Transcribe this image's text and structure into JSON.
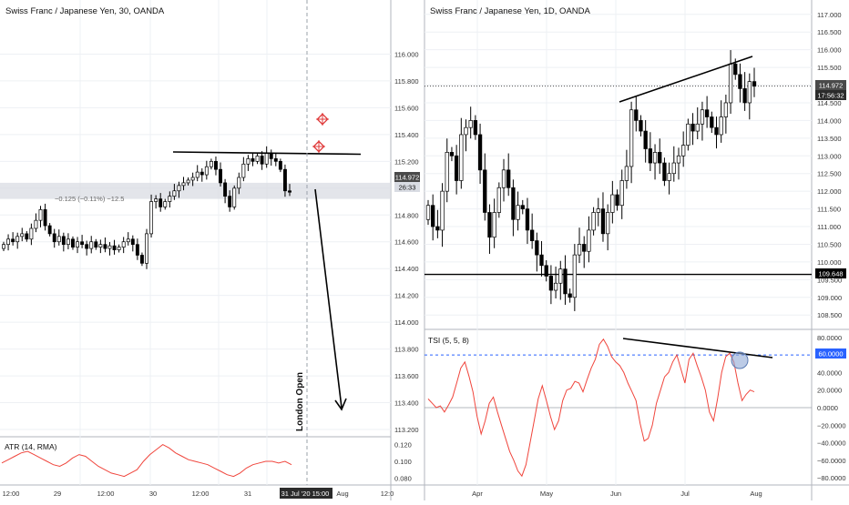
{
  "colors": {
    "up": "#ffffff",
    "down": "#000000",
    "wick": "#000000",
    "indicator": "#f0453c",
    "grid": "#eef0f4",
    "axis_text": "#333333",
    "price_tag_bg": "#4a4a4a",
    "support_tag_bg": "#000000",
    "highlight_band": "#d9dce3",
    "tsi_level": "#2962ff",
    "tsi_circle": "#8fa9d6",
    "marker": "#e03c3c"
  },
  "left_panel": {
    "title": "Swiss Franc / Japanese Yen, 30, OANDA",
    "change_text": "−0.125 (−0.11%) −12.5",
    "annotation": "London Open",
    "last_price": "114.972",
    "countdown": "26:33",
    "icons": [
      "crosshair-marker-icon",
      "crosshair-marker-icon"
    ]
  },
  "right_panel": {
    "title": "Swiss Franc / Japanese Yen, 1D, OANDA",
    "last_price": "114.972",
    "countdown": "17:56:32",
    "support_level": "109.648"
  },
  "atr": {
    "label": "ATR (14, RMA)"
  },
  "tsi": {
    "label": "TSI (5, 5, 8)",
    "level_tag": "60.0000"
  },
  "chart_data": [
    {
      "type": "candlestick",
      "title": "Swiss Franc / Japanese Yen, 30, OANDA",
      "ylim": [
        113.2,
        116.2
      ],
      "ticks": [
        "116.000",
        "115.800",
        "115.600",
        "115.400",
        "115.200",
        "115.000",
        "114.800",
        "114.600",
        "114.400",
        "114.200",
        "114.000",
        "113.800",
        "113.600",
        "113.400",
        "113.200"
      ],
      "x_ticks": [
        "12:00",
        "29",
        "12:00",
        "30",
        "12:00",
        "31",
        "31 Jul '20  15:00",
        "Aug",
        "12:0"
      ],
      "resistance": 115.26,
      "highlight_zone": [
        114.92,
        115.04
      ],
      "closes": [
        114.58,
        114.62,
        114.6,
        114.64,
        114.66,
        114.62,
        114.7,
        114.76,
        114.84,
        114.72,
        114.66,
        114.6,
        114.64,
        114.58,
        114.62,
        114.56,
        114.6,
        114.58,
        114.55,
        114.6,
        114.56,
        114.58,
        114.55,
        114.57,
        114.54,
        114.56,
        114.6,
        114.62,
        114.58,
        114.5,
        114.44,
        114.66,
        114.9,
        114.92,
        114.86,
        114.9,
        114.94,
        114.98,
        115.02,
        115.04,
        115.06,
        115.08,
        115.12,
        115.1,
        115.16,
        115.2,
        115.14,
        115.04,
        114.94,
        114.86,
        115.0,
        115.08,
        115.18,
        115.22,
        115.2,
        115.24,
        115.18,
        115.26,
        115.22,
        115.2,
        115.14,
        114.98,
        114.97
      ]
    },
    {
      "type": "candlestick",
      "title": "Swiss Franc / Japanese Yen, 1D, OANDA",
      "ylim": [
        108.3,
        117.2
      ],
      "ticks": [
        "117.000",
        "116.500",
        "116.000",
        "115.500",
        "115.000",
        "114.500",
        "114.000",
        "113.500",
        "113.000",
        "112.500",
        "112.000",
        "111.500",
        "111.000",
        "110.500",
        "110.000",
        "109.500",
        "109.000",
        "108.500"
      ],
      "x_ticks": [
        "Apr",
        "May",
        "Jun",
        "Jul",
        "Aug"
      ],
      "support": 109.648,
      "closes": [
        111.6,
        111.0,
        110.9,
        112.0,
        113.1,
        113.0,
        112.3,
        113.6,
        113.8,
        114.0,
        113.6,
        112.6,
        111.4,
        110.7,
        111.4,
        112.1,
        112.6,
        112.1,
        111.2,
        111.6,
        111.5,
        110.9,
        110.6,
        110.2,
        109.9,
        109.6,
        109.2,
        109.4,
        109.8,
        109.1,
        109.0,
        110.2,
        110.5,
        110.3,
        110.9,
        111.4,
        111.5,
        110.8,
        111.4,
        111.9,
        111.6,
        112.3,
        112.7,
        114.3,
        114.0,
        113.7,
        113.2,
        112.8,
        113.1,
        112.8,
        112.3,
        112.5,
        112.8,
        113.0,
        113.3,
        113.9,
        113.7,
        113.9,
        114.3,
        114.1,
        113.8,
        113.6,
        114.1,
        114.5,
        115.6,
        115.3,
        114.9,
        114.5,
        115.1,
        114.97
      ]
    },
    {
      "type": "line",
      "title": "ATR (14, RMA)",
      "ylim": [
        0.075,
        0.125
      ],
      "ticks": [
        "0.120",
        "0.100",
        "0.080"
      ],
      "values": [
        0.098,
        0.102,
        0.106,
        0.11,
        0.112,
        0.108,
        0.104,
        0.1,
        0.096,
        0.094,
        0.098,
        0.104,
        0.108,
        0.106,
        0.1,
        0.094,
        0.09,
        0.086,
        0.084,
        0.082,
        0.086,
        0.09,
        0.1,
        0.108,
        0.114,
        0.12,
        0.116,
        0.11,
        0.106,
        0.102,
        0.1,
        0.098,
        0.096,
        0.092,
        0.088,
        0.084,
        0.082,
        0.086,
        0.092,
        0.096,
        0.098,
        0.1,
        0.1,
        0.098,
        0.1,
        0.096
      ]
    },
    {
      "type": "line",
      "title": "TSI (5, 5, 8)",
      "ylim": [
        -85,
        85
      ],
      "ticks": [
        "80.0000",
        "60.0000",
        "40.0000",
        "20.0000",
        "0.0000",
        "−20.0000",
        "−40.0000",
        "−60.0000",
        "−80.0000"
      ],
      "level": 60,
      "values": [
        10,
        5,
        0,
        2,
        -5,
        3,
        12,
        28,
        45,
        52,
        36,
        18,
        -10,
        -30,
        -15,
        5,
        12,
        -5,
        -20,
        -35,
        -50,
        -60,
        -72,
        -78,
        -65,
        -40,
        -15,
        10,
        25,
        8,
        -10,
        -25,
        -15,
        8,
        20,
        22,
        30,
        28,
        18,
        32,
        45,
        55,
        72,
        78,
        70,
        58,
        52,
        48,
        40,
        28,
        18,
        8,
        -18,
        -38,
        -35,
        -20,
        5,
        20,
        35,
        40,
        52,
        60,
        44,
        28,
        55,
        62,
        48,
        35,
        20,
        -5,
        -15,
        10,
        40,
        58,
        62,
        52,
        28,
        8,
        15,
        20,
        18
      ]
    }
  ]
}
